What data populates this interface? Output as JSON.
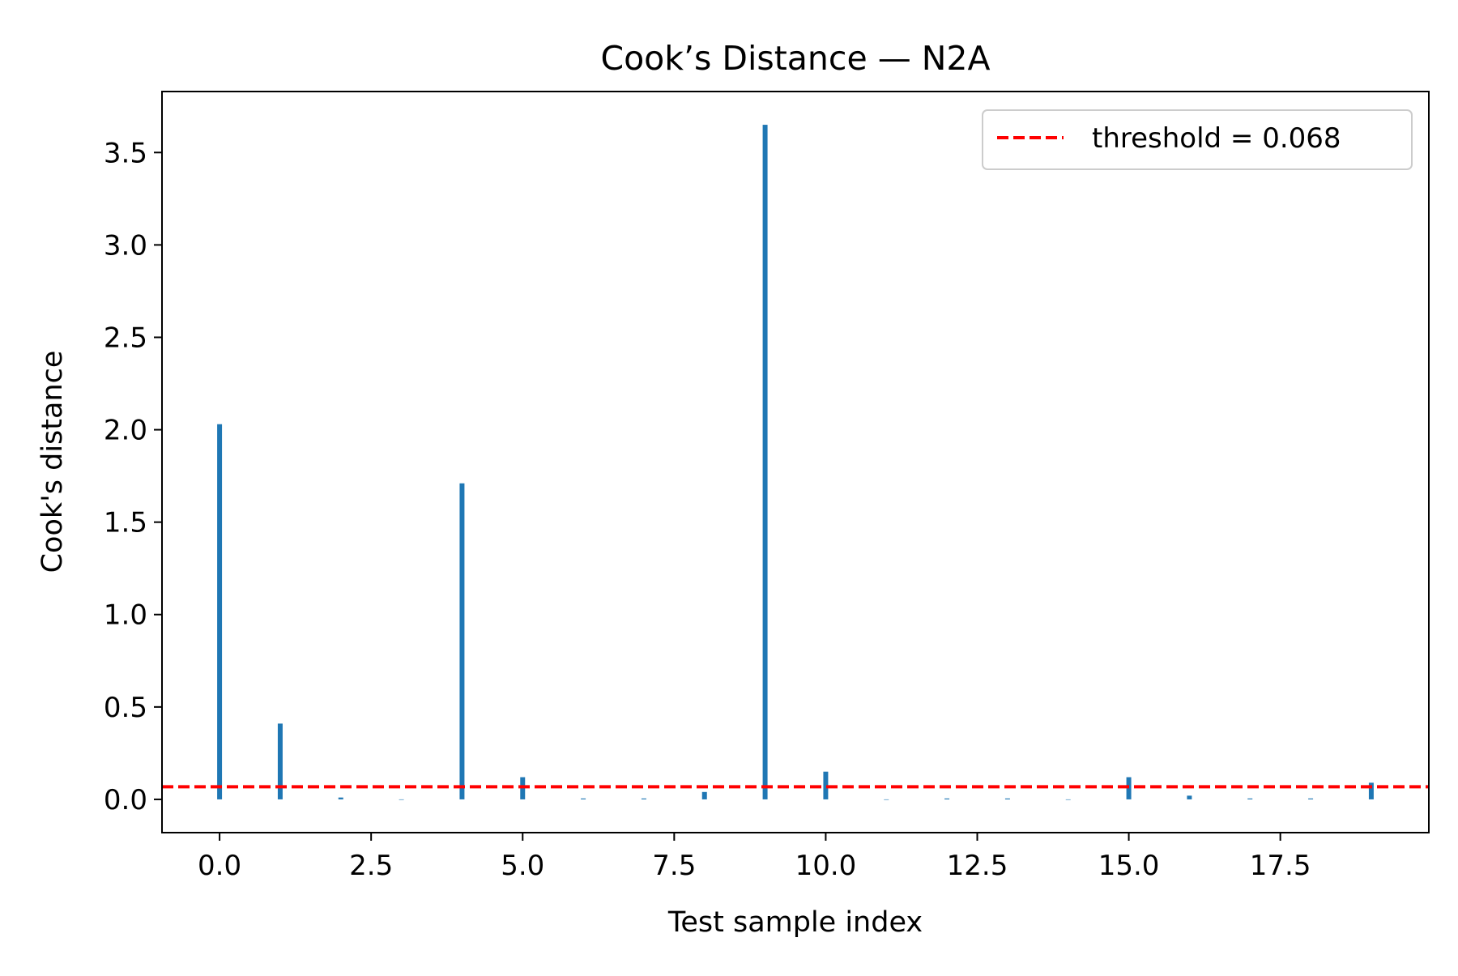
{
  "chart_data": {
    "type": "bar",
    "title": "Cook’s Distance — N2A",
    "xlabel": "Test sample index",
    "ylabel": "Cook's distance",
    "x": [
      0,
      1,
      2,
      3,
      4,
      5,
      6,
      7,
      8,
      9,
      10,
      11,
      12,
      13,
      14,
      15,
      16,
      17,
      18,
      19
    ],
    "values": [
      2.03,
      0.41,
      0.01,
      0.0,
      1.71,
      0.12,
      0.005,
      0.005,
      0.04,
      3.65,
      0.15,
      0.0,
      0.005,
      0.005,
      0.0,
      0.12,
      0.02,
      0.005,
      0.005,
      0.09
    ],
    "xlim": [
      -0.95,
      19.95
    ],
    "ylim": [
      -0.18,
      3.83
    ],
    "xticks": [
      0,
      2.5,
      5,
      7.5,
      10,
      12.5,
      15,
      17.5
    ],
    "xtick_labels": [
      "0.0",
      "2.5",
      "5.0",
      "7.5",
      "10.0",
      "12.5",
      "15.0",
      "17.5"
    ],
    "yticks": [
      0,
      0.5,
      1,
      1.5,
      2,
      2.5,
      3,
      3.5
    ],
    "ytick_labels": [
      "0.0",
      "0.5",
      "1.0",
      "1.5",
      "2.0",
      "2.5",
      "3.0",
      "3.5"
    ],
    "bar_color": "#1f77b4",
    "threshold": {
      "value": 0.068,
      "color": "#ff0000",
      "style": "dashed",
      "label": "threshold = 0.068"
    },
    "legend_position": "upper right",
    "grid": false
  }
}
